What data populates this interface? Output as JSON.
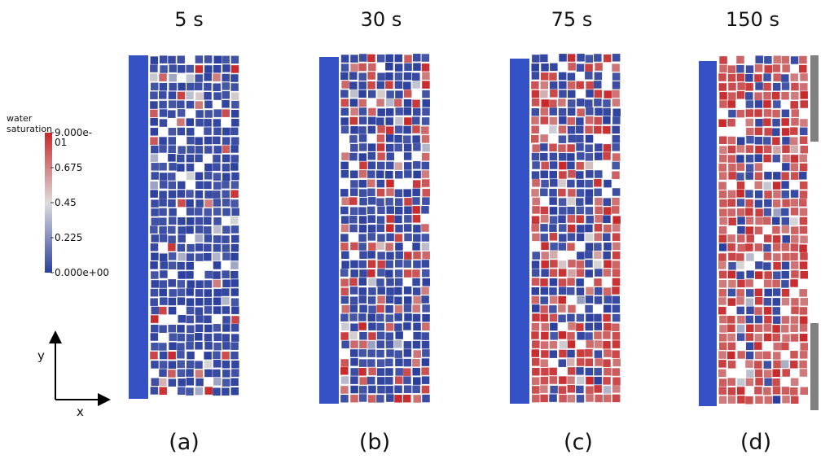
{
  "time_labels": [
    "5 s",
    "30 s",
    "75 s",
    "150 s"
  ],
  "panel_labels": [
    "(a)",
    "(b)",
    "(c)",
    "(d)"
  ],
  "legend": {
    "title": "water saturation",
    "ticks": [
      "9.000e-01",
      "0.675",
      "0.45",
      "0.225",
      "0.000e+00"
    ],
    "color_high": "#c8282a",
    "color_mid": "#dddddd",
    "color_low": "#2b3f9e"
  },
  "axes": {
    "y_label": "y",
    "x_label": "x"
  },
  "colors": {
    "inlet_bar": "#3451c6",
    "outlet_gray": "#808080",
    "grain_low": "#2b3f9e",
    "grain_high": "#c8282a"
  },
  "panels": [
    {
      "time": "5 s",
      "label": "(a)",
      "wet_fraction": 0.05
    },
    {
      "time": "30 s",
      "label": "(b)",
      "wet_fraction": 0.18
    },
    {
      "time": "75 s",
      "label": "(c)",
      "wet_fraction": 0.4
    },
    {
      "time": "150 s",
      "label": "(d)",
      "wet_fraction": 0.55
    }
  ]
}
